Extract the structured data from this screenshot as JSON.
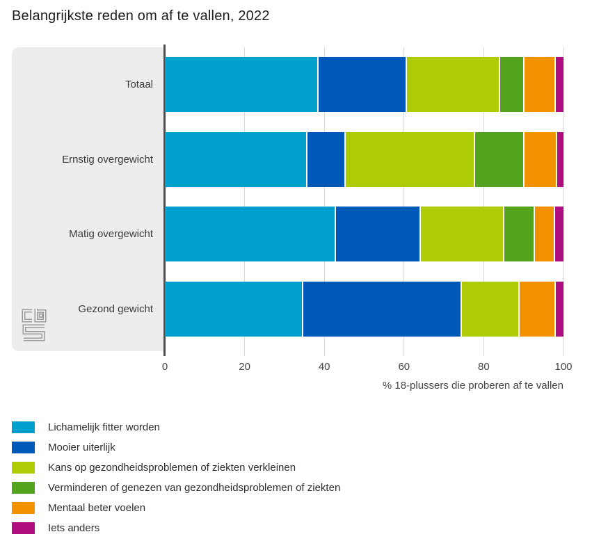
{
  "title": "Belangrijkste reden om af te vallen, 2022",
  "axis": {
    "xlabel": "% 18-plussers die proberen af te vallen"
  },
  "branding": {
    "logo_name": "cbs-logo"
  },
  "chart_data": {
    "type": "bar",
    "orientation": "horizontal",
    "stacked": true,
    "title": "Belangrijkste reden om af te vallen, 2022",
    "xlabel": "% 18-plussers die proberen af te vallen",
    "xlim": [
      0,
      100
    ],
    "x_ticks": [
      0,
      20,
      40,
      60,
      80,
      100
    ],
    "grid": true,
    "legend_position": "bottom-left",
    "categories": [
      "Totaal",
      "Ernstig overgewicht",
      "Matig overgewicht",
      "Gezond gewicht"
    ],
    "series": [
      {
        "name": "Lichamelijk fitter worden",
        "color": "#00a1cd",
        "values": [
          38.6,
          35.8,
          42.9,
          34.7
        ]
      },
      {
        "name": "Mooier uiterlijk",
        "color": "#0058b8",
        "values": [
          22.2,
          9.6,
          21.3,
          39.9
        ]
      },
      {
        "name": "Kans op gezondheidsproblemen of ziekten verkleinen",
        "color": "#afcb05",
        "values": [
          23.3,
          32.5,
          21.0,
          14.4
        ]
      },
      {
        "name": "Verminderen of genezen van gezondheidsproblemen of ziekten",
        "color": "#53a31d",
        "values": [
          6.2,
          12.4,
          7.7,
          0.0
        ]
      },
      {
        "name": "Mentaal beter voelen",
        "color": "#f39200",
        "values": [
          7.8,
          8.2,
          5.0,
          9.0
        ]
      },
      {
        "name": "Iets anders",
        "color": "#af0e80",
        "values": [
          1.9,
          1.5,
          2.1,
          2.0
        ]
      }
    ]
  }
}
